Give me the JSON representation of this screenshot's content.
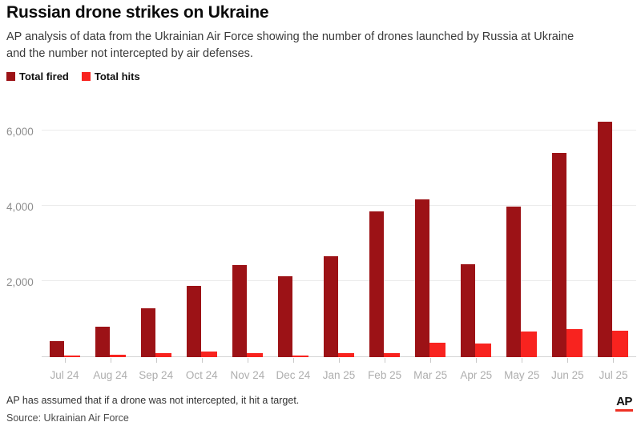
{
  "header": {
    "title": "Russian drone strikes on Ukraine",
    "subtitle_line1": "AP analysis of data from the Ukrainian Air Force showing the number of drones launched by Russia at Ukraine",
    "subtitle_line2": "and the number not intercepted by air defenses."
  },
  "legend": {
    "items": [
      {
        "label": "Total fired",
        "color": "#9c1216"
      },
      {
        "label": "Total hits",
        "color": "#f8231f"
      }
    ]
  },
  "chart_data": {
    "type": "bar",
    "title": "Russian drone strikes on Ukraine",
    "categories": [
      "Jul 24",
      "Aug 24",
      "Sep 24",
      "Oct 24",
      "Nov 24",
      "Dec 24",
      "Jan 25",
      "Feb 25",
      "Mar 25",
      "Apr 25",
      "May 25",
      "Jun 25",
      "Jul 25"
    ],
    "series": [
      {
        "name": "Total fired",
        "color": "#9c1216",
        "values": [
          430,
          800,
          1300,
          1890,
          2440,
          2150,
          2670,
          3870,
          4180,
          2460,
          4000,
          5410,
          6250
        ]
      },
      {
        "name": "Total hits",
        "color": "#f8231f",
        "values": [
          50,
          65,
          100,
          150,
          115,
          50,
          110,
          100,
          380,
          360,
          690,
          750,
          700
        ]
      }
    ],
    "xlabel": "",
    "ylabel": "",
    "ylim": [
      0,
      6500
    ],
    "yticks": [
      2000,
      4000,
      6000
    ],
    "ytick_labels": [
      "2,000",
      "4,000",
      "6,000"
    ],
    "grid": true,
    "legend_position": "top-left"
  },
  "footer": {
    "note": "AP has assumed that if a drone was not intercepted, it hit a target.",
    "source": "Source: Ukrainian Air Force",
    "logo_text": "AP"
  },
  "colors": {
    "fired": "#9c1216",
    "hits": "#f8231f",
    "gridline": "#ebebeb",
    "baseline": "#d4d4d4",
    "axis_label": "#aeaeae",
    "ap_red": "#ee3124",
    "background": "#ffffff"
  }
}
